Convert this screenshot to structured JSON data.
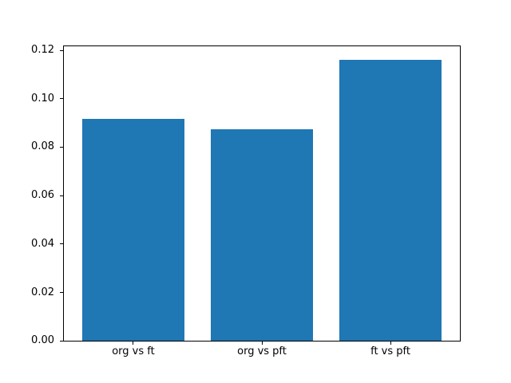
{
  "chart_data": {
    "type": "bar",
    "categories": [
      "org vs ft",
      "org vs pft",
      "ft vs pft"
    ],
    "values": [
      0.0917,
      0.0874,
      0.1161
    ],
    "title": "",
    "xlabel": "",
    "ylabel": "",
    "ylim": [
      0,
      0.1218
    ],
    "xlim": [
      -0.54,
      2.54
    ],
    "yticks": [
      0.0,
      0.02,
      0.04,
      0.06,
      0.08,
      0.1,
      0.12
    ],
    "ytick_labels": [
      "0.00",
      "0.02",
      "0.04",
      "0.06",
      "0.08",
      "0.10",
      "0.12"
    ],
    "bar_color": "#1f77b4",
    "bar_width_fraction": 0.8,
    "grid": false,
    "legend": false
  },
  "figure": {
    "background": "#ffffff",
    "frame_color": "#000000",
    "tick_color": "#000000"
  }
}
